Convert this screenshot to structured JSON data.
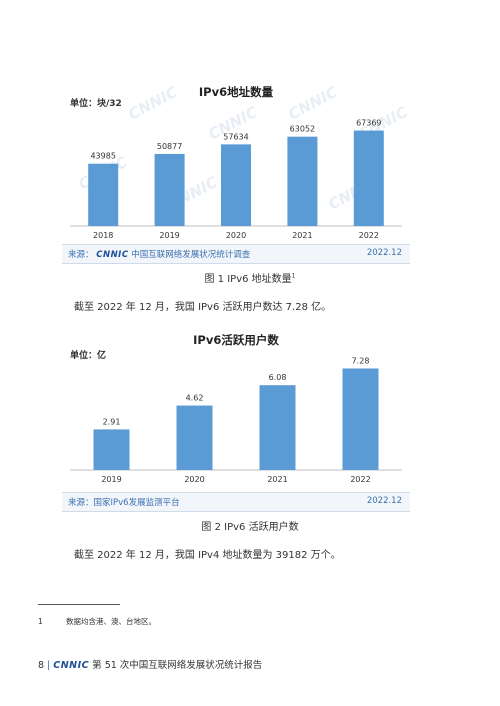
{
  "chart_data": [
    {
      "type": "bar",
      "title": "IPv6地址数量",
      "unit": "单位：块/32",
      "categories": [
        "2018",
        "2019",
        "2020",
        "2021",
        "2022"
      ],
      "values": [
        43985,
        50877,
        57634,
        63052,
        67369
      ],
      "value_labels": [
        "43985",
        "50877",
        "57634",
        "63052",
        "67369"
      ],
      "ylim": [
        0,
        72000
      ],
      "source": "来源：",
      "source_org": "中国互联网络发展状况统计调查",
      "date": "2022.12",
      "color": "#5b9bd5"
    },
    {
      "type": "bar",
      "title": "IPv6活跃用户数",
      "unit": "单位：亿",
      "categories": [
        "2019",
        "2020",
        "2021",
        "2022"
      ],
      "values": [
        2.91,
        4.62,
        6.08,
        7.28
      ],
      "value_labels": [
        "2.91",
        "4.62",
        "6.08",
        "7.28"
      ],
      "ylim": [
        0,
        7.6
      ],
      "source": "来源：国家IPv6发展监测平台",
      "date": "2022.12",
      "color": "#5b9bd5"
    }
  ],
  "logo_text": "CNNIC",
  "caption1": "图 1 IPv6 地址数量",
  "caption1_note": "1",
  "text1": "截至 2022 年 12 月，我国 IPv6 活跃用户数达 7.28 亿。",
  "caption2": "图 2 IPv6 活跃用户数",
  "text2": "截至 2022 年 12 月，我国 IPv4 地址数量为 39182 万个。",
  "footnote_num": "1",
  "footnote_text": "数据均含港、澳、台地区。",
  "footer_page": "8",
  "footer_sep": "|",
  "footer_title": "第 51 次中国互联网络发展状况统计报告"
}
